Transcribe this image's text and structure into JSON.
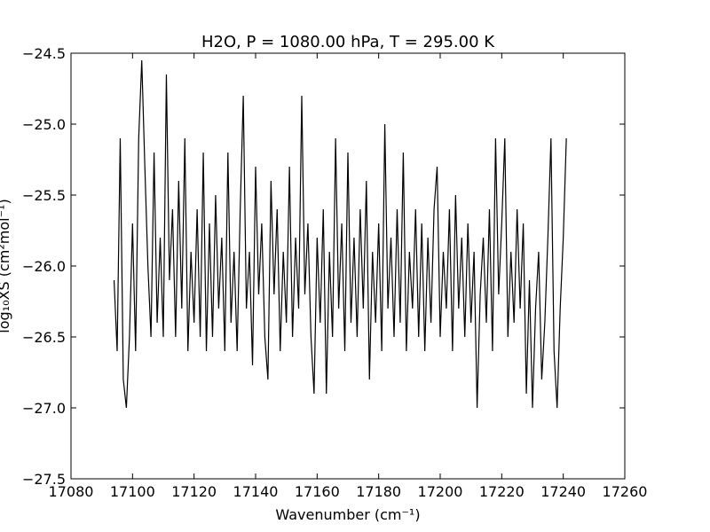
{
  "chart_data": {
    "type": "line",
    "title": "H2O, P = 1080.00 hPa, T = 295.00 K",
    "xlabel": "Wavenumber (cm⁻¹)",
    "ylabel": "log₁₀XS (cm²mol⁻¹)",
    "color": "#000000",
    "x": [
      17094,
      17095,
      17096,
      17097,
      17098,
      17099,
      17100,
      17101,
      17102,
      17103,
      17104,
      17105,
      17106,
      17107,
      17108,
      17109,
      17110,
      17111,
      17112,
      17113,
      17114,
      17115,
      17116,
      17117,
      17118,
      17119,
      17120,
      17121,
      17122,
      17123,
      17124,
      17125,
      17126,
      17127,
      17128,
      17129,
      17130,
      17131,
      17132,
      17133,
      17134,
      17135,
      17136,
      17137,
      17138,
      17139,
      17140,
      17141,
      17142,
      17143,
      17144,
      17145,
      17146,
      17147,
      17148,
      17149,
      17150,
      17151,
      17152,
      17153,
      17154,
      17155,
      17156,
      17157,
      17158,
      17159,
      17160,
      17161,
      17162,
      17163,
      17164,
      17165,
      17166,
      17167,
      17168,
      17169,
      17170,
      17171,
      17172,
      17173,
      17174,
      17175,
      17176,
      17177,
      17178,
      17179,
      17180,
      17181,
      17182,
      17183,
      17184,
      17185,
      17186,
      17187,
      17188,
      17189,
      17190,
      17191,
      17192,
      17193,
      17194,
      17195,
      17196,
      17197,
      17198,
      17199,
      17200,
      17201,
      17202,
      17203,
      17204,
      17205,
      17206,
      17207,
      17208,
      17209,
      17210,
      17211,
      17212,
      17213,
      17214,
      17215,
      17216,
      17217,
      17218,
      17219,
      17220,
      17221,
      17222,
      17223,
      17224,
      17225,
      17226,
      17227,
      17228,
      17229,
      17230,
      17231,
      17232,
      17233,
      17234,
      17235,
      17236,
      17237,
      17238,
      17239,
      17240,
      17241
    ],
    "values": [
      -26.1,
      -26.6,
      -25.1,
      -26.8,
      -27.0,
      -26.5,
      -25.7,
      -26.6,
      -25.1,
      -24.55,
      -25.3,
      -26.0,
      -26.5,
      -25.2,
      -26.4,
      -25.8,
      -26.5,
      -24.65,
      -26.1,
      -25.6,
      -26.5,
      -25.4,
      -26.3,
      -25.1,
      -26.6,
      -25.9,
      -26.4,
      -25.6,
      -26.5,
      -25.2,
      -26.6,
      -25.7,
      -26.5,
      -25.5,
      -26.3,
      -25.8,
      -26.6,
      -25.2,
      -26.4,
      -25.9,
      -26.6,
      -25.6,
      -24.8,
      -26.3,
      -25.9,
      -26.7,
      -25.3,
      -26.2,
      -25.7,
      -26.5,
      -26.8,
      -25.4,
      -26.2,
      -25.6,
      -26.6,
      -25.9,
      -26.4,
      -25.3,
      -26.5,
      -25.8,
      -26.3,
      -24.8,
      -26.2,
      -25.7,
      -26.5,
      -26.9,
      -25.8,
      -26.4,
      -25.6,
      -26.9,
      -25.9,
      -26.5,
      -25.1,
      -26.3,
      -25.7,
      -26.6,
      -25.2,
      -26.4,
      -25.8,
      -26.5,
      -25.6,
      -26.3,
      -25.4,
      -26.8,
      -25.9,
      -26.4,
      -25.7,
      -26.6,
      -25.0,
      -26.3,
      -25.8,
      -26.5,
      -25.6,
      -26.4,
      -25.2,
      -26.6,
      -25.9,
      -26.3,
      -25.6,
      -26.5,
      -25.7,
      -26.6,
      -25.8,
      -26.4,
      -25.6,
      -25.3,
      -26.5,
      -25.9,
      -26.3,
      -25.6,
      -26.6,
      -25.5,
      -26.3,
      -25.8,
      -26.5,
      -25.7,
      -26.4,
      -25.9,
      -27.0,
      -26.2,
      -25.8,
      -26.4,
      -25.6,
      -26.6,
      -25.1,
      -26.2,
      -25.7,
      -25.1,
      -26.5,
      -25.9,
      -26.4,
      -25.6,
      -26.3,
      -25.7,
      -26.9,
      -26.1,
      -27.0,
      -26.3,
      -25.9,
      -26.8,
      -26.4,
      -25.8,
      -25.1,
      -26.6,
      -27.0,
      -26.3,
      -25.8,
      -25.1
    ],
    "xlim": [
      17080,
      17260
    ],
    "xticks": [
      17080,
      17100,
      17120,
      17140,
      17160,
      17180,
      17200,
      17220,
      17240,
      17260
    ],
    "ylim": [
      -27.5,
      -24.5
    ],
    "yticks": [
      {
        "value": -27.5,
        "label": "−27.5"
      },
      {
        "value": -27.0,
        "label": "−27.0"
      },
      {
        "value": -26.5,
        "label": "−26.5"
      },
      {
        "value": -26.0,
        "label": "−26.0"
      },
      {
        "value": -25.5,
        "label": "−25.5"
      },
      {
        "value": -25.0,
        "label": "−25.0"
      },
      {
        "value": -24.5,
        "label": "−24.5"
      }
    ]
  }
}
